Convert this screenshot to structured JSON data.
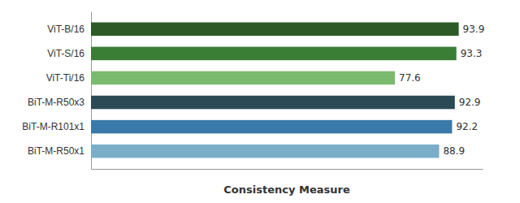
{
  "chart_data": {
    "type": "bar",
    "orientation": "horizontal",
    "categories": [
      "ViT-B/16",
      "ViT-S/16",
      "ViT-Ti/16",
      "BiT-M-R50x3",
      "BiT-M-R101x1",
      "BiT-M-R50x1"
    ],
    "values": [
      93.9,
      93.3,
      77.6,
      92.9,
      92.2,
      88.9
    ],
    "colors": [
      "#2d5a27",
      "#3a7d34",
      "#7aba6e",
      "#2b4a55",
      "#3a7aaa",
      "#7aaec8"
    ],
    "xlabel": "Consistency Measure",
    "xlim": [
      0,
      100
    ],
    "data_labels": true,
    "tick_labels": "y"
  }
}
